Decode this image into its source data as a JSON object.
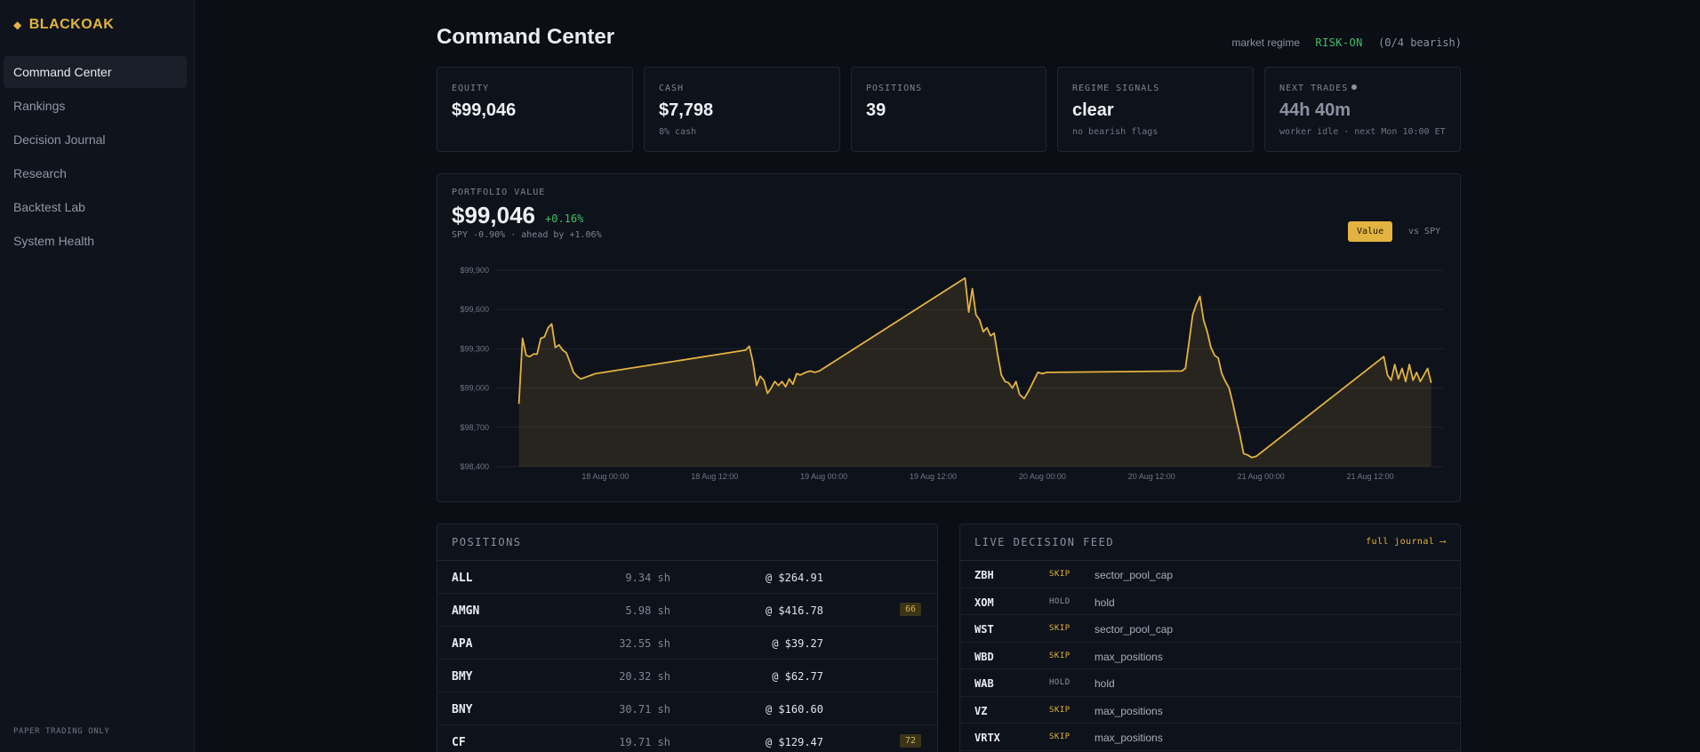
{
  "brand": {
    "name": "BLACKOAK",
    "icon": "diamond-icon"
  },
  "sidebar": {
    "items": [
      {
        "label": "Command Center",
        "active": true
      },
      {
        "label": "Rankings"
      },
      {
        "label": "Decision Journal"
      },
      {
        "label": "Research"
      },
      {
        "label": "Backtest Lab"
      },
      {
        "label": "System Health"
      }
    ],
    "footer": "PAPER TRADING ONLY"
  },
  "header": {
    "title": "Command Center",
    "regime_label": "market regime",
    "regime_value": "RISK-ON",
    "regime_detail": "(0/4 bearish)"
  },
  "stats": [
    {
      "label": "EQUITY",
      "value": "$99,046",
      "sub": ""
    },
    {
      "label": "CASH",
      "value": "$7,798",
      "sub": "8% cash"
    },
    {
      "label": "POSITIONS",
      "value": "39",
      "sub": ""
    },
    {
      "label": "REGIME SIGNALS",
      "value": "clear",
      "sub": "no bearish flags"
    },
    {
      "label": "NEXT TRADES",
      "value": "44h 40m",
      "sub": "worker idle · next Mon 10:00 ET"
    }
  ],
  "portfolio": {
    "label": "PORTFOLIO VALUE",
    "value": "$99,046",
    "change": "+0.16%",
    "spy_note": "SPY -0.90% · ahead by +1.06%",
    "toggle_value": "Value",
    "toggle_spy": "vs SPY"
  },
  "chart_data": {
    "type": "area",
    "color": "#e3b341",
    "ylim": [
      98400,
      99900
    ],
    "yticks": [
      "$99,900",
      "$99,600",
      "$99,300",
      "$99,000",
      "$98,700",
      "$98,400"
    ],
    "xticks": [
      "18 Aug 00:00",
      "18 Aug 12:00",
      "19 Aug 00:00",
      "19 Aug 12:00",
      "20 Aug 00:00",
      "20 Aug 12:00",
      "21 Aug 00:00",
      "21 Aug 12:00"
    ],
    "x_hours": [
      -9.5,
      -9.1,
      -8.7,
      -8.3,
      -7.9,
      -7.5,
      -7.1,
      -6.7,
      -6.3,
      -5.9,
      -5.5,
      -5.1,
      -4.7,
      -4.3,
      -3.9,
      -3.5,
      -3.1,
      -2.7,
      -2.3,
      -1.9,
      -1.5,
      -1.1,
      15.4,
      15.8,
      16.2,
      16.6,
      17.0,
      17.4,
      17.8,
      18.2,
      18.6,
      19.0,
      19.4,
      19.8,
      20.2,
      20.6,
      21.0,
      21.4,
      22.0,
      22.5,
      23.0,
      23.5,
      39.5,
      39.9,
      40.3,
      40.7,
      41.1,
      41.5,
      41.9,
      42.3,
      42.7,
      43.1,
      43.5,
      43.9,
      44.3,
      44.7,
      45.1,
      45.5,
      46.0,
      46.5,
      47.0,
      47.5,
      48.0,
      48.5,
      49.0,
      63.3,
      63.7,
      64.1,
      64.5,
      64.9,
      65.3,
      65.7,
      66.1,
      66.5,
      66.9,
      67.3,
      67.7,
      68.1,
      68.5,
      68.9,
      69.3,
      69.7,
      70.1,
      70.5,
      71.0,
      71.5,
      85.5,
      85.9,
      86.3,
      86.7,
      87.1,
      87.5,
      87.9,
      88.3,
      88.7,
      89.1,
      89.5,
      89.9,
      90.3,
      90.7
    ],
    "values": [
      98880,
      99380,
      99250,
      99240,
      99260,
      99260,
      99380,
      99390,
      99460,
      99490,
      99310,
      99330,
      99290,
      99270,
      99200,
      99120,
      99090,
      99070,
      99080,
      99090,
      99100,
      99110,
      99290,
      99320,
      99200,
      99020,
      99090,
      99060,
      98960,
      99000,
      99050,
      99020,
      99050,
      99010,
      99070,
      99030,
      99110,
      99100,
      99120,
      99130,
      99120,
      99130,
      99840,
      99580,
      99760,
      99560,
      99520,
      99430,
      99460,
      99400,
      99420,
      99250,
      99100,
      99050,
      99040,
      99000,
      99050,
      98950,
      98920,
      98980,
      99050,
      99120,
      99110,
      99120,
      99120,
      99130,
      99150,
      99350,
      99560,
      99640,
      99700,
      99520,
      99430,
      99310,
      99250,
      99230,
      99110,
      99050,
      99000,
      98890,
      98760,
      98640,
      98500,
      98490,
      98470,
      98480,
      99240,
      99100,
      99060,
      99180,
      99070,
      99150,
      99050,
      99180,
      99060,
      99120,
      99050,
      99100,
      99150,
      99040
    ]
  },
  "positions": {
    "title": "POSITIONS",
    "rows": [
      {
        "ticker": "ALL",
        "shares": "9.34 sh",
        "price": "@ $264.91",
        "badge": ""
      },
      {
        "ticker": "AMGN",
        "shares": "5.98 sh",
        "price": "@ $416.78",
        "badge": "66"
      },
      {
        "ticker": "APA",
        "shares": "32.55 sh",
        "price": "@ $39.27",
        "badge": ""
      },
      {
        "ticker": "BMY",
        "shares": "20.32 sh",
        "price": "@ $62.77",
        "badge": ""
      },
      {
        "ticker": "BNY",
        "shares": "30.71 sh",
        "price": "@ $160.60",
        "badge": ""
      },
      {
        "ticker": "CF",
        "shares": "19.71 sh",
        "price": "@ $129.47",
        "badge": "72"
      }
    ]
  },
  "feed": {
    "title": "LIVE DECISION FEED",
    "link": "full journal ⟶",
    "rows": [
      {
        "ticker": "ZBH",
        "action": "SKIP",
        "reason": "sector_pool_cap"
      },
      {
        "ticker": "XOM",
        "action": "HOLD",
        "reason": "hold"
      },
      {
        "ticker": "WST",
        "action": "SKIP",
        "reason": "sector_pool_cap"
      },
      {
        "ticker": "WBD",
        "action": "SKIP",
        "reason": "max_positions"
      },
      {
        "ticker": "WAB",
        "action": "HOLD",
        "reason": "hold"
      },
      {
        "ticker": "VZ",
        "action": "SKIP",
        "reason": "max_positions"
      },
      {
        "ticker": "VRTX",
        "action": "SKIP",
        "reason": "max_positions"
      }
    ]
  }
}
